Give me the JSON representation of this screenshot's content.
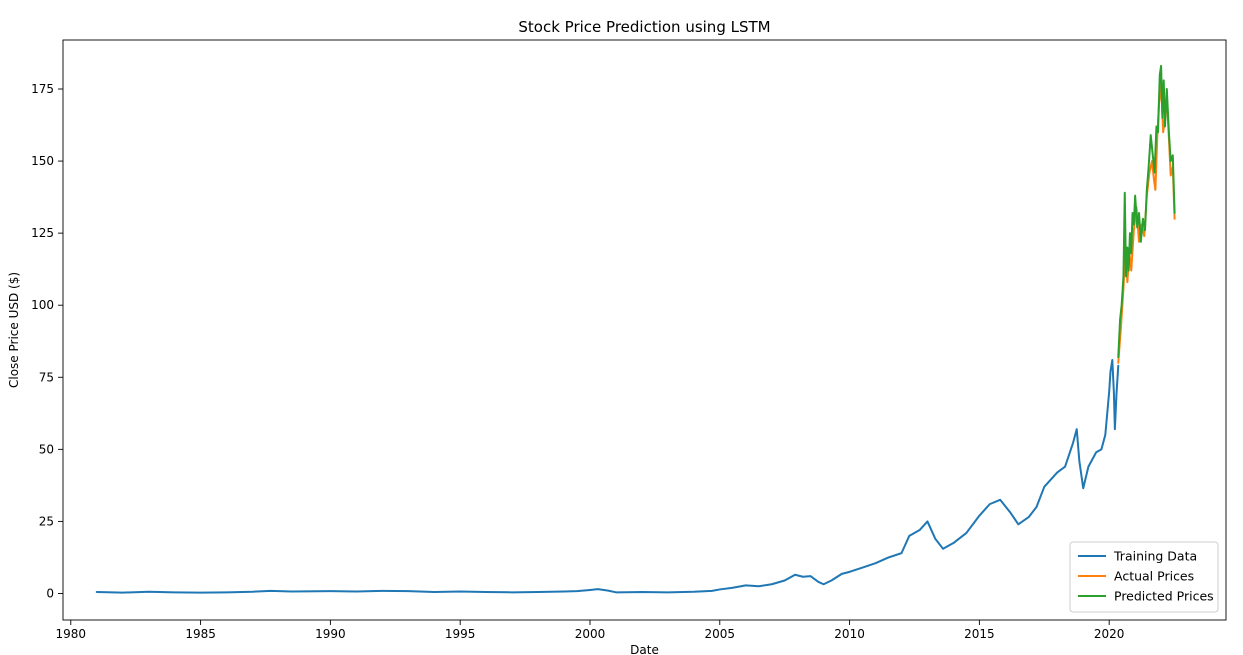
{
  "chart_data": {
    "type": "line",
    "title": "Stock Price Prediction using LSTM",
    "xlabel": "Date",
    "ylabel": "Close Price USD ($)",
    "xlim": [
      1979.7,
      2024.5
    ],
    "ylim": [
      -9.2,
      192
    ],
    "xticks": [
      1980,
      1985,
      1990,
      1995,
      2000,
      2005,
      2010,
      2015,
      2020
    ],
    "yticks": [
      0,
      25,
      50,
      75,
      100,
      125,
      150,
      175
    ],
    "grid": false,
    "legend_position": "bottom-right",
    "series": [
      {
        "name": "Training Data",
        "color": "#1f77b4",
        "x": [
          1981.0,
          1982.0,
          1983.0,
          1984.0,
          1985.0,
          1986.0,
          1987.0,
          1987.7,
          1988.5,
          1990.0,
          1991.0,
          1992.0,
          1993.0,
          1994.0,
          1995.0,
          1996.0,
          1997.0,
          1998.0,
          1999.0,
          1999.5,
          2000.0,
          2000.3,
          2000.7,
          2001.0,
          2002.0,
          2003.0,
          2004.0,
          2004.7,
          2005.0,
          2005.5,
          2006.0,
          2006.5,
          2007.0,
          2007.5,
          2007.9,
          2008.2,
          2008.5,
          2008.8,
          2009.0,
          2009.3,
          2009.7,
          2010.0,
          2010.5,
          2011.0,
          2011.5,
          2012.0,
          2012.3,
          2012.7,
          2013.0,
          2013.3,
          2013.6,
          2014.0,
          2014.5,
          2015.0,
          2015.4,
          2015.8,
          2016.2,
          2016.5,
          2016.9,
          2017.2,
          2017.5,
          2017.8,
          2018.0,
          2018.3,
          2018.6,
          2018.75,
          2018.85,
          2019.0,
          2019.2,
          2019.5,
          2019.7,
          2019.85,
          2020.0,
          2020.05,
          2020.12,
          2020.18,
          2020.22,
          2020.28,
          2020.35
        ],
        "y": [
          0.5,
          0.3,
          0.6,
          0.4,
          0.3,
          0.4,
          0.6,
          0.9,
          0.7,
          0.8,
          0.7,
          0.9,
          0.8,
          0.5,
          0.7,
          0.5,
          0.4,
          0.5,
          0.7,
          0.8,
          1.2,
          1.5,
          1.0,
          0.4,
          0.5,
          0.4,
          0.6,
          0.9,
          1.4,
          2.0,
          2.8,
          2.5,
          3.2,
          4.5,
          6.5,
          5.8,
          6.0,
          4.0,
          3.2,
          4.5,
          6.8,
          7.5,
          9.0,
          10.5,
          12.5,
          14.0,
          20.0,
          22.0,
          25.0,
          19.0,
          15.5,
          17.5,
          21.0,
          27.0,
          31.0,
          32.5,
          28.0,
          24.0,
          26.5,
          30.0,
          37.0,
          40.0,
          42.0,
          44.0,
          52.0,
          57.0,
          46.0,
          36.5,
          44.0,
          49.0,
          50.0,
          55.0,
          70.0,
          77.0,
          81.0,
          70.0,
          57.0,
          69.0,
          79.0
        ]
      },
      {
        "name": "Actual Prices",
        "color": "#ff7f0e",
        "x": [
          2020.35,
          2020.45,
          2020.55,
          2020.62,
          2020.7,
          2020.78,
          2020.85,
          2020.95,
          2021.05,
          2021.15,
          2021.25,
          2021.35,
          2021.45,
          2021.55,
          2021.65,
          2021.72,
          2021.78,
          2021.85,
          2021.92,
          2022.0,
          2022.08,
          2022.15,
          2022.22,
          2022.3,
          2022.37,
          2022.45,
          2022.52
        ],
        "y": [
          80.0,
          92.0,
          106.0,
          120.0,
          108.0,
          118.0,
          112.0,
          126.0,
          134.0,
          122.0,
          128.0,
          124.0,
          138.0,
          146.0,
          150.0,
          144.0,
          140.0,
          158.0,
          170.0,
          176.0,
          160.0,
          165.0,
          172.0,
          158.0,
          145.0,
          148.0,
          130.0
        ]
      },
      {
        "name": "Predicted Prices",
        "color": "#2ca02c",
        "x": [
          2020.35,
          2020.42,
          2020.48,
          2020.55,
          2020.6,
          2020.65,
          2020.7,
          2020.75,
          2020.8,
          2020.85,
          2020.9,
          2020.95,
          2021.0,
          2021.08,
          2021.15,
          2021.22,
          2021.3,
          2021.38,
          2021.45,
          2021.52,
          2021.6,
          2021.68,
          2021.75,
          2021.82,
          2021.88,
          2021.95,
          2022.0,
          2022.05,
          2022.1,
          2022.15,
          2022.22,
          2022.3,
          2022.37,
          2022.45,
          2022.52
        ],
        "y": [
          82.0,
          95.0,
          100.0,
          110.0,
          139.0,
          110.0,
          120.0,
          112.0,
          125.0,
          118.0,
          132.0,
          128.0,
          138.0,
          127.0,
          132.0,
          122.0,
          130.0,
          126.0,
          140.0,
          148.0,
          159.0,
          152.0,
          146.0,
          162.0,
          160.0,
          180.0,
          183.0,
          165.0,
          178.0,
          162.0,
          175.0,
          160.0,
          150.0,
          152.0,
          132.0
        ]
      }
    ]
  }
}
